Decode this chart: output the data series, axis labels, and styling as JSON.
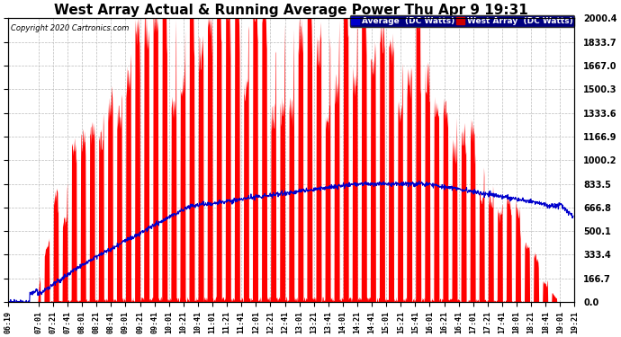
{
  "title": "West Array Actual & Running Average Power Thu Apr 9 19:31",
  "copyright": "Copyright 2020 Cartronics.com",
  "yticks": [
    0.0,
    166.7,
    333.4,
    500.1,
    666.8,
    833.5,
    1000.2,
    1166.9,
    1333.6,
    1500.3,
    1667.0,
    1833.7,
    2000.4
  ],
  "ymax": 2000.4,
  "ymin": 0.0,
  "legend_labels": [
    "Average  (DC Watts)",
    "West Array  (DC Watts)"
  ],
  "legend_colors": [
    "#0000cc",
    "#cc0000"
  ],
  "legend_bg_colors": [
    "#0000cc",
    "#cc0000"
  ],
  "background_color": "#ffffff",
  "plot_background": "#ffffff",
  "grid_color": "#bbbbbb",
  "bar_color": "#ff0000",
  "line_color": "#0000cc",
  "title_fontsize": 11,
  "xtick_labels": [
    "06:19",
    "07:01",
    "07:21",
    "07:41",
    "08:01",
    "08:21",
    "08:41",
    "09:01",
    "09:21",
    "09:41",
    "10:01",
    "10:21",
    "10:41",
    "11:01",
    "11:21",
    "11:41",
    "12:01",
    "12:21",
    "12:41",
    "13:01",
    "13:21",
    "13:41",
    "14:01",
    "14:21",
    "14:41",
    "15:01",
    "15:21",
    "15:41",
    "16:01",
    "16:21",
    "16:41",
    "17:01",
    "17:21",
    "17:41",
    "18:01",
    "18:21",
    "18:41",
    "19:01",
    "19:21"
  ]
}
